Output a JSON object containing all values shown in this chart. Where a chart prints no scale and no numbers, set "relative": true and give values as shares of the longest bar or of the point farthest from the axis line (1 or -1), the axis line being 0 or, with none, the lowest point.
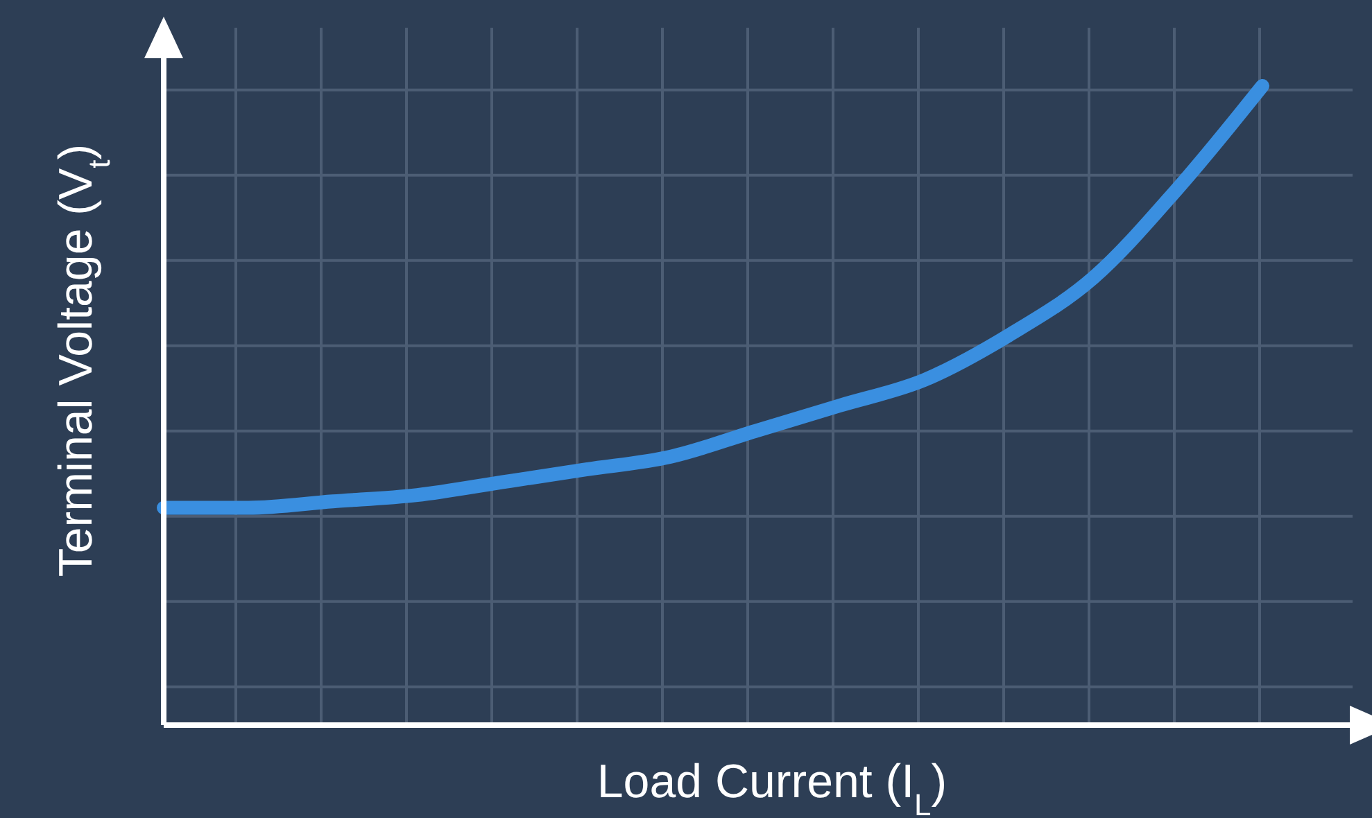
{
  "chart_data": {
    "type": "line",
    "relative": true,
    "xlabel": "Load Current (I$_{L}$)",
    "ylabel": "Terminal Voltage (V$_{t}$)",
    "grid": true,
    "marker": "none",
    "line_style": "solid",
    "categories": [
      null,
      null,
      null,
      null,
      null,
      null,
      null,
      null,
      null,
      null,
      null,
      null,
      null,
      null
    ],
    "series": [
      {
        "color": "#3a8fe0",
        "values": [
          0.34,
          0.34,
          0.35,
          0.36,
          0.38,
          0.4,
          0.42,
          0.46,
          0.5,
          0.54,
          0.61,
          0.7,
          0.84,
          1
        ]
      }
    ]
  }
}
